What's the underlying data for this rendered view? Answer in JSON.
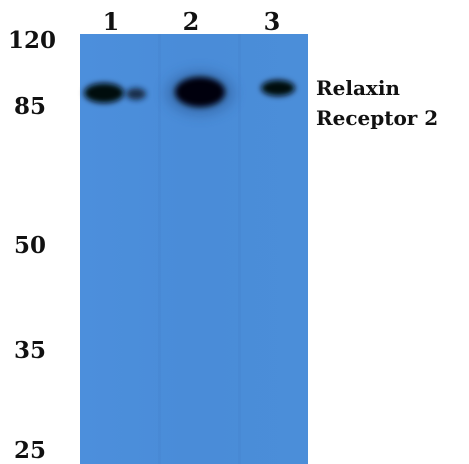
{
  "lanes": [
    "1",
    "2",
    "3"
  ],
  "markers": [
    "120",
    "85",
    "50",
    "35",
    "25"
  ],
  "band_label": [
    "Relaxin",
    "Receptor 2"
  ]
}
